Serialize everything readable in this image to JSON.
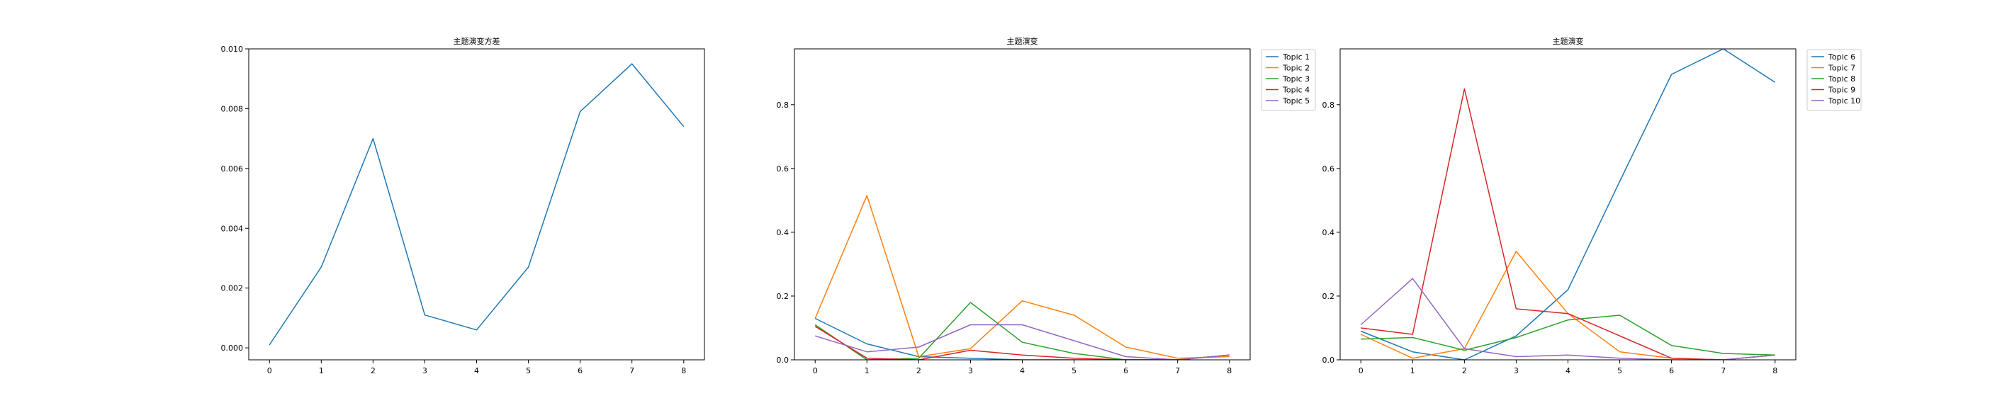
{
  "chart_data": [
    {
      "type": "line",
      "title": "主题演变方差",
      "xlabel": "",
      "ylabel": "",
      "x": [
        0,
        1,
        2,
        3,
        4,
        5,
        6,
        7,
        8
      ],
      "xticks": [
        "0",
        "1",
        "2",
        "3",
        "4",
        "5",
        "6",
        "7",
        "8"
      ],
      "xlim": [
        -0.4,
        8.4
      ],
      "ylim": [
        -0.0004,
        0.01
      ],
      "yticks": [
        "0.000",
        "0.002",
        "0.004",
        "0.006",
        "0.008",
        "0.010"
      ],
      "ytick_values": [
        0,
        0.002,
        0.004,
        0.006,
        0.008,
        0.01
      ],
      "grid": false,
      "legend": "none",
      "series": [
        {
          "color": "#1f77b4",
          "values": [
            0.0001,
            0.0027,
            0.007,
            0.0011,
            0.0006,
            0.0027,
            0.0079,
            0.0095,
            0.0074
          ]
        }
      ]
    },
    {
      "type": "line",
      "title": "主题演变",
      "xlabel": "",
      "ylabel": "",
      "x": [
        0,
        1,
        2,
        3,
        4,
        5,
        6,
        7,
        8
      ],
      "xticks": [
        "0",
        "1",
        "2",
        "3",
        "4",
        "5",
        "6",
        "7",
        "8"
      ],
      "xlim": [
        -0.4,
        8.4
      ],
      "ylim": [
        0,
        0.975
      ],
      "yticks": [
        "0.0",
        "0.2",
        "0.4",
        "0.6",
        "0.8"
      ],
      "ytick_values": [
        0,
        0.2,
        0.4,
        0.6,
        0.8
      ],
      "grid": false,
      "legend": "outside-upper-right",
      "series": [
        {
          "name": "Topic 1",
          "color": "#1f77b4",
          "values": [
            0.13,
            0.05,
            0.01,
            0.005,
            0.0,
            0.0,
            0.0,
            0.0,
            0.015
          ]
        },
        {
          "name": "Topic 2",
          "color": "#ff7f0e",
          "values": [
            0.13,
            0.515,
            0.01,
            0.035,
            0.185,
            0.14,
            0.04,
            0.005,
            0.01
          ]
        },
        {
          "name": "Topic 3",
          "color": "#2ca02c",
          "values": [
            0.11,
            0.0,
            0.005,
            0.18,
            0.055,
            0.02,
            0.0,
            0.0,
            0.015
          ]
        },
        {
          "name": "Topic 4",
          "color": "#d62728",
          "values": [
            0.105,
            0.005,
            0.0,
            0.03,
            0.015,
            0.005,
            0.0,
            0.0,
            0.015
          ]
        },
        {
          "name": "Topic 5",
          "color": "#9467bd",
          "values": [
            0.075,
            0.025,
            0.04,
            0.11,
            0.11,
            0.06,
            0.01,
            0.0,
            0.015
          ]
        }
      ]
    },
    {
      "type": "line",
      "title": "主题演变",
      "xlabel": "",
      "ylabel": "",
      "x": [
        0,
        1,
        2,
        3,
        4,
        5,
        6,
        7,
        8
      ],
      "xticks": [
        "0",
        "1",
        "2",
        "3",
        "4",
        "5",
        "6",
        "7",
        "8"
      ],
      "xlim": [
        -0.4,
        8.4
      ],
      "ylim": [
        0,
        0.975
      ],
      "yticks": [
        "0.0",
        "0.2",
        "0.4",
        "0.6",
        "0.8"
      ],
      "ytick_values": [
        0,
        0.2,
        0.4,
        0.6,
        0.8
      ],
      "grid": false,
      "legend": "outside-upper-right",
      "series": [
        {
          "name": "Topic 6",
          "color": "#1f77b4",
          "values": [
            0.09,
            0.025,
            0.0,
            0.075,
            0.22,
            0.56,
            0.895,
            0.975,
            0.87
          ]
        },
        {
          "name": "Topic 7",
          "color": "#ff7f0e",
          "values": [
            0.08,
            0.005,
            0.035,
            0.34,
            0.145,
            0.025,
            0.005,
            0.0,
            0.015
          ]
        },
        {
          "name": "Topic 8",
          "color": "#2ca02c",
          "values": [
            0.065,
            0.07,
            0.03,
            0.07,
            0.125,
            0.14,
            0.045,
            0.02,
            0.015
          ]
        },
        {
          "name": "Topic 9",
          "color": "#d62728",
          "values": [
            0.1,
            0.08,
            0.85,
            0.16,
            0.145,
            0.075,
            0.005,
            0.0,
            0.015
          ]
        },
        {
          "name": "Topic 10",
          "color": "#9467bd",
          "values": [
            0.11,
            0.255,
            0.035,
            0.01,
            0.015,
            0.005,
            0.0,
            0.0,
            0.015
          ]
        }
      ]
    }
  ]
}
